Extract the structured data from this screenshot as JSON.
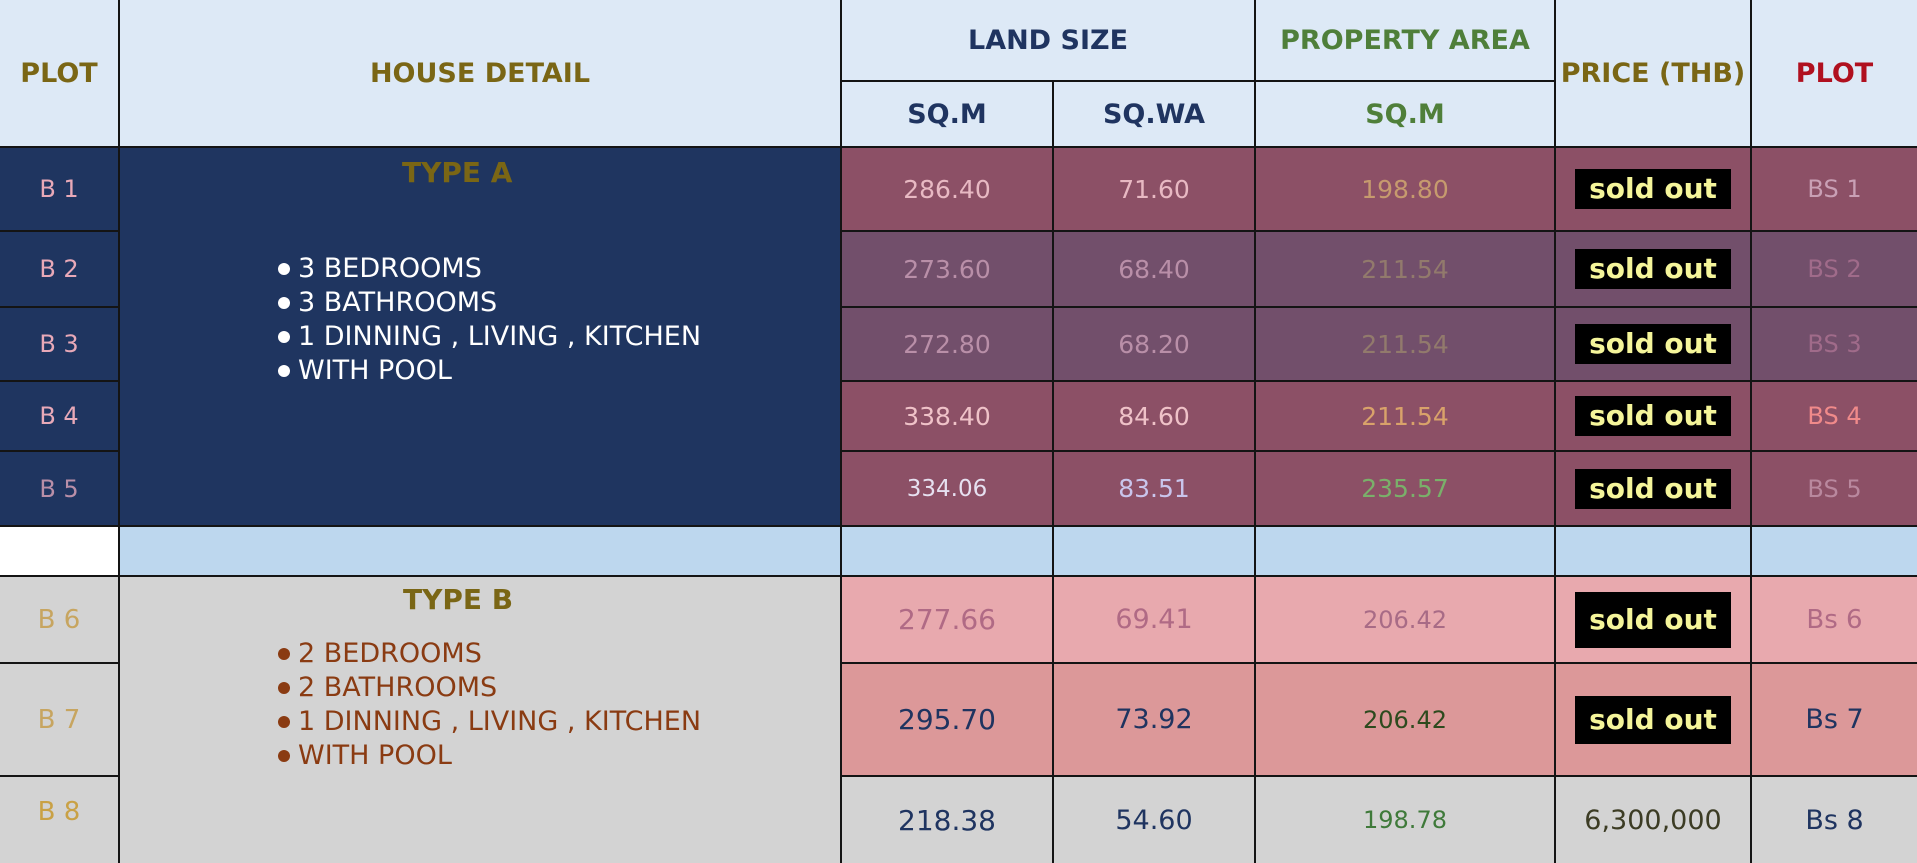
{
  "header": {
    "plot_left": "PLOT",
    "house_detail": "HOUSE DETAIL",
    "land_size": "LAND SIZE",
    "land_sqm": "SQ.M",
    "land_sqwa": "SQ.WA",
    "property_area": "PROPERTY AREA",
    "property_sqm": "SQ.M",
    "price": "PRICE (THB)",
    "plot_right": "PLOT"
  },
  "type_a": {
    "title": "TYPE A",
    "features": [
      "3 BEDROOMS",
      "3 BATHROOMS",
      "1 DINNING , LIVING , KITCHEN",
      "WITH POOL"
    ]
  },
  "type_b": {
    "title": "TYPE B",
    "features": [
      "2 BEDROOMS",
      "2 BATHROOMS",
      "1 DINNING , LIVING , KITCHEN",
      "WITH POOL"
    ]
  },
  "rows": [
    {
      "plot": "B 1",
      "land_sqm": "286.40",
      "land_sqwa": "71.60",
      "area_sqm": "198.80",
      "price": "sold out",
      "plot_right": "BS 1"
    },
    {
      "plot": "B 2",
      "land_sqm": "273.60",
      "land_sqwa": "68.40",
      "area_sqm": "211.54",
      "price": "sold out",
      "plot_right": "BS 2"
    },
    {
      "plot": "B 3",
      "land_sqm": "272.80",
      "land_sqwa": "68.20",
      "area_sqm": "211.54",
      "price": "sold out",
      "plot_right": "BS 3"
    },
    {
      "plot": "B 4",
      "land_sqm": "338.40",
      "land_sqwa": "84.60",
      "area_sqm": "211.54",
      "price": "sold out",
      "plot_right": "BS 4"
    },
    {
      "plot": "B 5",
      "land_sqm": "334.06",
      "land_sqwa": "83.51",
      "area_sqm": "235.57",
      "price": "sold out",
      "plot_right": "BS 5"
    },
    {
      "plot": "B 6",
      "land_sqm": "277.66",
      "land_sqwa": "69.41",
      "area_sqm": "206.42",
      "price": "sold out",
      "plot_right": "Bs 6"
    },
    {
      "plot": "B 7",
      "land_sqm": "295.70",
      "land_sqwa": "73.92",
      "area_sqm": "206.42",
      "price": "sold out",
      "plot_right": "Bs 7"
    },
    {
      "plot": "B 8",
      "land_sqm": "218.38",
      "land_sqwa": "54.60",
      "area_sqm": "198.78",
      "price": "6,300,000",
      "plot_right": "Bs 8"
    }
  ],
  "colors": {
    "header_bg": "#dde9f6",
    "type_a_bg": "#1f3560",
    "type_a_rows_bg": "#8c5066",
    "type_b_pink": "#e8a9ae",
    "type_b_grey": "#d3d3d3",
    "sold_out_bg": "#000000",
    "sold_out_text": "#f5f59a"
  }
}
